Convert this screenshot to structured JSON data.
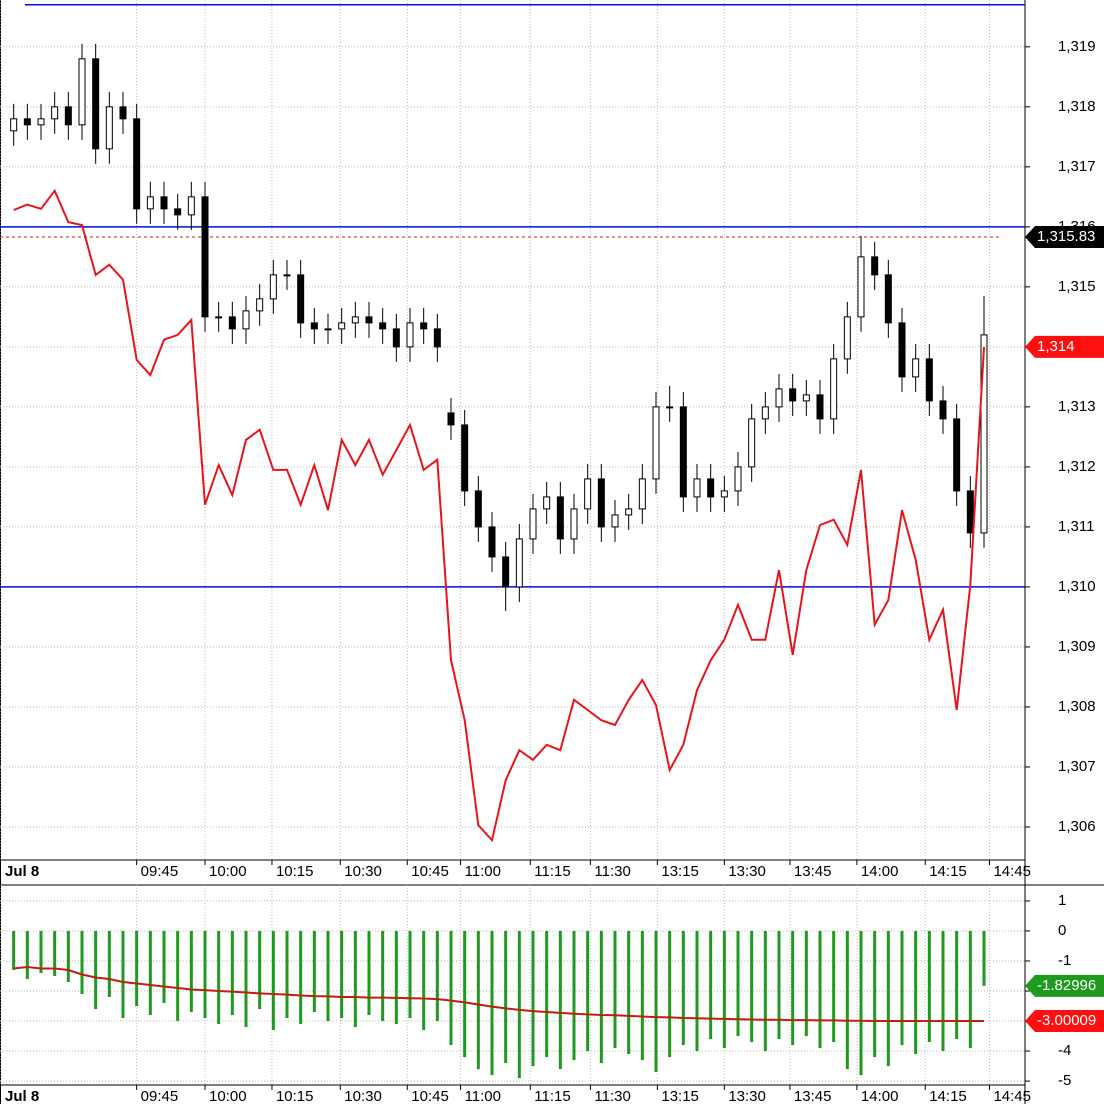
{
  "chart_data": [
    {
      "type": "candlestick",
      "xlim": [
        0,
        75
      ],
      "xticks": [
        {
          "value": 0,
          "label": "Jul 8"
        },
        {
          "value": 10,
          "label": "09:45"
        },
        {
          "value": 15,
          "label": "10:00"
        },
        {
          "value": 19.9,
          "label": "10:15"
        },
        {
          "value": 24.9,
          "label": "10:30"
        },
        {
          "value": 29.8,
          "label": "10:45"
        },
        {
          "value": 33.7,
          "label": "11:00"
        },
        {
          "value": 38.8,
          "label": "11:15"
        },
        {
          "value": 43.2,
          "label": "11:30"
        },
        {
          "value": 48.1,
          "label": "13:15"
        },
        {
          "value": 53,
          "label": "13:30"
        },
        {
          "value": 57.8,
          "label": "13:45"
        },
        {
          "value": 62.7,
          "label": "14:00"
        },
        {
          "value": 67.7,
          "label": "14:15"
        },
        {
          "value": 72.4,
          "label": "14:45"
        }
      ],
      "ylim": [
        1305.45,
        1319.78
      ],
      "yticks": [
        {
          "value": 1306,
          "label": "1,306"
        },
        {
          "value": 1307,
          "label": "1,307"
        },
        {
          "value": 1308,
          "label": "1,308"
        },
        {
          "value": 1309,
          "label": "1,309"
        },
        {
          "value": 1310,
          "label": "1,310"
        },
        {
          "value": 1311,
          "label": "1,311"
        },
        {
          "value": 1312,
          "label": "1,312"
        },
        {
          "value": 1313,
          "label": "1,313"
        },
        {
          "value": 1314,
          "label": "1,314"
        },
        {
          "value": 1315,
          "label": "1,315"
        },
        {
          "value": 1316,
          "label": "1,316"
        },
        {
          "value": 1317,
          "label": "1,317"
        },
        {
          "value": 1318,
          "label": "1,318"
        },
        {
          "value": 1319,
          "label": "1,319"
        }
      ],
      "grid": true,
      "open": [
        1317.6,
        1317.8,
        1317.7,
        1317.8,
        1318.0,
        1317.7,
        1318.8,
        1317.3,
        1318.0,
        1317.8,
        1316.3,
        1316.5,
        1316.3,
        1316.2,
        1316.5,
        1314.5,
        1314.5,
        1314.3,
        1314.6,
        1314.8,
        1315.2,
        1315.2,
        1314.4,
        1314.3,
        1314.3,
        1314.4,
        1314.5,
        1314.4,
        1314.3,
        1314.0,
        1314.4,
        1314.3,
        1312.9,
        1312.7,
        1311.6,
        1311.0,
        1310.5,
        1310.0,
        1310.8,
        1311.3,
        1311.5,
        1310.8,
        1311.3,
        1311.8,
        1311.0,
        1311.2,
        1311.3,
        1311.8,
        1313.0,
        1313.0,
        1311.5,
        1311.8,
        1311.5,
        1311.6,
        1312.0,
        1312.8,
        1313.0,
        1313.3,
        1313.1,
        1313.2,
        1312.8,
        1313.8,
        1314.5,
        1315.5,
        1315.2,
        1314.4,
        1313.5,
        1313.8,
        1313.1,
        1312.8,
        1311.6,
        1310.9
      ],
      "high": [
        1318.05,
        1318.05,
        1318.05,
        1318.25,
        1318.25,
        1319.05,
        1319.05,
        1318.25,
        1318.25,
        1318.05,
        1316.75,
        1316.75,
        1316.55,
        1316.75,
        1316.75,
        1314.75,
        1314.75,
        1314.85,
        1315.05,
        1315.45,
        1315.45,
        1315.45,
        1314.65,
        1314.55,
        1314.65,
        1314.75,
        1314.75,
        1314.65,
        1314.55,
        1314.65,
        1314.65,
        1314.55,
        1313.15,
        1312.95,
        1311.85,
        1311.25,
        1310.75,
        1311.05,
        1311.55,
        1311.75,
        1311.75,
        1311.55,
        1312.05,
        1312.05,
        1311.45,
        1311.55,
        1312.05,
        1313.25,
        1313.35,
        1313.25,
        1312.05,
        1312.05,
        1311.85,
        1312.25,
        1313.05,
        1313.25,
        1313.55,
        1313.55,
        1313.45,
        1313.45,
        1314.05,
        1314.75,
        1315.85,
        1315.75,
        1315.45,
        1314.65,
        1314.05,
        1314.05,
        1313.35,
        1313.05,
        1311.85,
        1314.85
      ],
      "low": [
        1317.35,
        1317.45,
        1317.45,
        1317.55,
        1317.45,
        1317.45,
        1317.05,
        1317.05,
        1317.55,
        1316.05,
        1316.05,
        1316.05,
        1315.95,
        1315.95,
        1314.25,
        1314.25,
        1314.05,
        1314.05,
        1314.35,
        1314.55,
        1314.95,
        1314.15,
        1314.05,
        1314.05,
        1314.05,
        1314.15,
        1314.15,
        1314.05,
        1313.75,
        1313.75,
        1314.05,
        1313.75,
        1312.45,
        1311.35,
        1310.75,
        1310.25,
        1309.6,
        1309.75,
        1310.55,
        1311.05,
        1310.55,
        1310.55,
        1311.05,
        1310.75,
        1310.75,
        1310.95,
        1311.05,
        1311.55,
        1312.75,
        1311.25,
        1311.25,
        1311.25,
        1311.25,
        1311.35,
        1311.75,
        1312.55,
        1312.75,
        1312.85,
        1312.85,
        1312.55,
        1312.55,
        1313.55,
        1314.25,
        1314.95,
        1314.15,
        1313.25,
        1313.25,
        1312.85,
        1312.55,
        1311.35,
        1310.65,
        1310.65
      ],
      "close": [
        1317.8,
        1317.7,
        1317.8,
        1318.0,
        1317.7,
        1318.8,
        1317.3,
        1318.0,
        1317.8,
        1316.3,
        1316.5,
        1316.3,
        1316.2,
        1316.5,
        1314.5,
        1314.5,
        1314.3,
        1314.6,
        1314.8,
        1315.2,
        1315.2,
        1314.4,
        1314.3,
        1314.3,
        1314.4,
        1314.5,
        1314.4,
        1314.3,
        1314.0,
        1314.4,
        1314.3,
        1314.0,
        1312.7,
        1311.6,
        1311.0,
        1310.5,
        1310.0,
        1310.8,
        1311.3,
        1311.5,
        1310.8,
        1311.3,
        1311.8,
        1311.0,
        1311.2,
        1311.3,
        1311.8,
        1313.0,
        1313.0,
        1311.5,
        1311.8,
        1311.5,
        1311.6,
        1312.0,
        1312.8,
        1313.0,
        1313.3,
        1313.1,
        1313.2,
        1312.8,
        1313.8,
        1314.5,
        1315.5,
        1315.2,
        1314.4,
        1313.5,
        1313.8,
        1313.1,
        1312.8,
        1311.6,
        1310.9,
        1314.2
      ],
      "line": {
        "color": "#e8141c",
        "values": [
          1316.28,
          1316.37,
          1316.3,
          1316.6,
          1316.08,
          1316.03,
          1315.2,
          1315.37,
          1315.12,
          1313.78,
          1313.53,
          1314.12,
          1314.2,
          1314.45,
          1311.37,
          1312.03,
          1311.53,
          1312.45,
          1312.62,
          1311.95,
          1311.95,
          1311.37,
          1312.03,
          1311.28,
          1312.45,
          1312.03,
          1312.45,
          1311.87,
          1312.28,
          1312.7,
          1311.95,
          1312.12,
          1308.78,
          1307.78,
          1306.03,
          1305.78,
          1306.78,
          1307.28,
          1307.12,
          1307.37,
          1307.28,
          1308.12,
          1307.95,
          1307.78,
          1307.7,
          1308.12,
          1308.45,
          1308.03,
          1306.95,
          1307.37,
          1308.28,
          1308.78,
          1309.12,
          1309.7,
          1309.12,
          1309.12,
          1310.28,
          1308.87,
          1310.28,
          1311.03,
          1311.12,
          1310.7,
          1311.95,
          1309.37,
          1309.78,
          1311.28,
          1310.45,
          1309.12,
          1309.62,
          1307.95,
          1310.03,
          1314.0
        ]
      },
      "hlines": {
        "color": "#0010d0",
        "values": [
          1319.7,
          1316,
          1310
        ]
      },
      "tags": [
        {
          "value": 1315.83,
          "label": "1,315.83",
          "color": "#000000",
          "dashed_color": "#cc2020"
        },
        {
          "value": 1314,
          "label": "1,314",
          "color": "#ff1010"
        }
      ]
    },
    {
      "type": "bar",
      "xlim": [
        0,
        75
      ],
      "xticks": [
        {
          "value": 0,
          "label": "Jul 8"
        },
        {
          "value": 10,
          "label": "09:45"
        },
        {
          "value": 15,
          "label": "10:00"
        },
        {
          "value": 19.9,
          "label": "10:15"
        },
        {
          "value": 24.9,
          "label": "10:30"
        },
        {
          "value": 29.8,
          "label": "10:45"
        },
        {
          "value": 33.7,
          "label": "11:00"
        },
        {
          "value": 38.8,
          "label": "11:15"
        },
        {
          "value": 43.2,
          "label": "11:30"
        },
        {
          "value": 48.1,
          "label": "13:15"
        },
        {
          "value": 53,
          "label": "13:30"
        },
        {
          "value": 57.8,
          "label": "13:45"
        },
        {
          "value": 62.7,
          "label": "14:00"
        },
        {
          "value": 67.7,
          "label": "14:15"
        },
        {
          "value": 72.4,
          "label": "14:45"
        }
      ],
      "ylim": [
        -5.13,
        1.53
      ],
      "yticks": [
        1,
        0,
        -1,
        -2,
        -3,
        -4,
        -5
      ],
      "grid": true,
      "color": "#1f9a1f",
      "values": [
        -1.3,
        -1.6,
        -1.4,
        -1.5,
        -1.7,
        -2.1,
        -2.6,
        -2.2,
        -2.9,
        -2.5,
        -2.8,
        -2.4,
        -3.0,
        -2.7,
        -2.9,
        -3.1,
        -2.8,
        -3.2,
        -2.6,
        -3.3,
        -2.9,
        -3.1,
        -2.7,
        -3.0,
        -2.9,
        -3.2,
        -2.8,
        -3.0,
        -3.1,
        -2.9,
        -3.3,
        -3.0,
        -3.8,
        -4.2,
        -4.6,
        -4.8,
        -4.4,
        -4.9,
        -4.5,
        -4.2,
        -4.6,
        -4.3,
        -4.0,
        -4.4,
        -3.9,
        -4.1,
        -4.3,
        -4.7,
        -4.2,
        -3.8,
        -4.0,
        -3.6,
        -3.9,
        -3.5,
        -3.7,
        -4.0,
        -3.6,
        -3.8,
        -3.5,
        -3.9,
        -3.7,
        -4.6,
        -4.8,
        -4.2,
        -4.5,
        -3.8,
        -4.1,
        -3.7,
        -4.0,
        -3.6,
        -3.9,
        -1.82996
      ],
      "line": {
        "color": "#c0200c",
        "values": [
          -1.25,
          -1.2,
          -1.25,
          -1.25,
          -1.3,
          -1.45,
          -1.55,
          -1.6,
          -1.7,
          -1.75,
          -1.8,
          -1.85,
          -1.9,
          -1.95,
          -1.97,
          -2.0,
          -2.02,
          -2.05,
          -2.08,
          -2.1,
          -2.12,
          -2.15,
          -2.17,
          -2.18,
          -2.2,
          -2.2,
          -2.22,
          -2.22,
          -2.23,
          -2.24,
          -2.25,
          -2.27,
          -2.32,
          -2.38,
          -2.45,
          -2.52,
          -2.58,
          -2.63,
          -2.67,
          -2.7,
          -2.73,
          -2.76,
          -2.78,
          -2.8,
          -2.81,
          -2.83,
          -2.85,
          -2.87,
          -2.88,
          -2.9,
          -2.91,
          -2.92,
          -2.93,
          -2.94,
          -2.95,
          -2.96,
          -2.96,
          -2.97,
          -2.97,
          -2.98,
          -2.98,
          -2.99,
          -2.99,
          -3.0,
          -3.0,
          -3.0,
          -3.0,
          -3.0,
          -3.0,
          -3.0,
          -3.0,
          -3.00009
        ]
      },
      "tags": [
        {
          "value": -1.82996,
          "color": "#1f9a1f"
        },
        {
          "value": -3.00009,
          "color": "#ff1010"
        }
      ]
    }
  ]
}
